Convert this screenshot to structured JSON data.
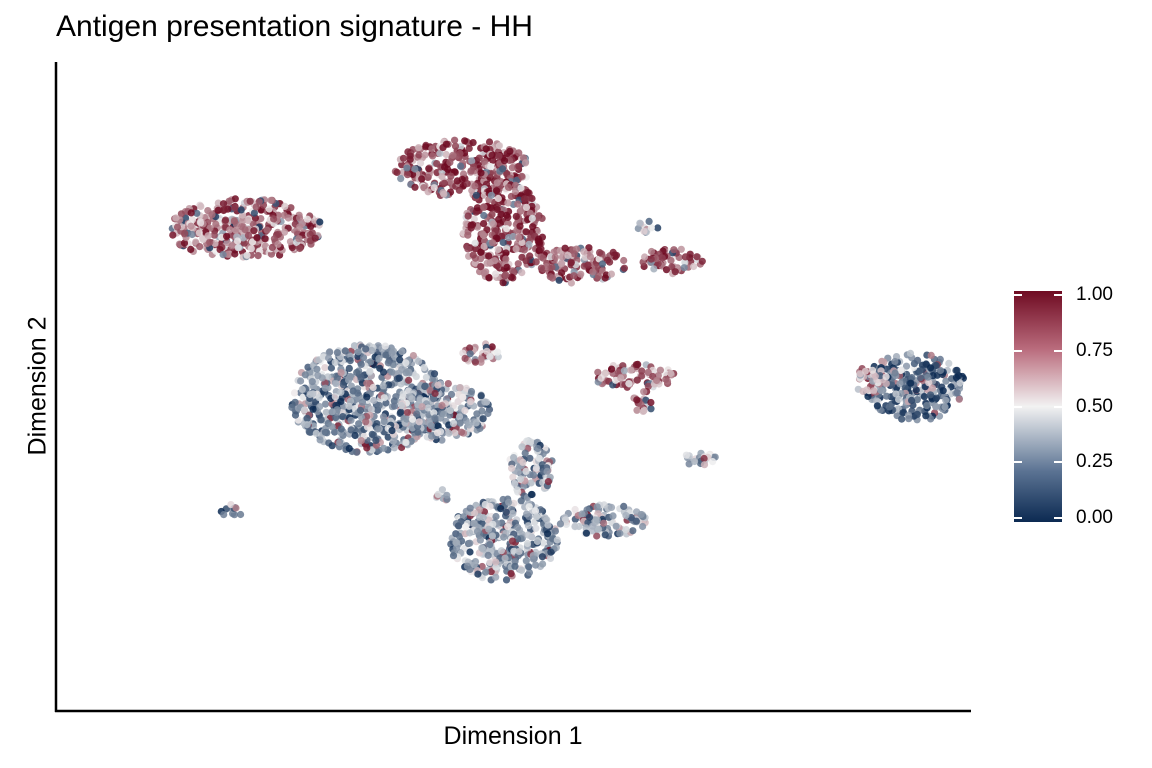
{
  "chart_data": {
    "type": "scatter",
    "title": "Antigen presentation signature - HH",
    "xlabel": "Dimension 1",
    "ylabel": "Dimension 2",
    "xlim": [
      0,
      100
    ],
    "ylim": [
      0,
      100
    ],
    "grid": false,
    "legend_position": "right",
    "color_scale": {
      "range": [
        0,
        1
      ],
      "ticks": [
        "1.00",
        "0.75",
        "0.50",
        "0.25",
        "0.00"
      ],
      "low_color": "#0c2a52",
      "mid_color": "#f2f2f2",
      "high_color": "#6f0b22"
    },
    "clusters": [
      {
        "cx": 20.5,
        "cy": 74.5,
        "rx": 8.5,
        "ry": 4.8,
        "mean_score": 0.8
      },
      {
        "cx": 44.5,
        "cy": 84,
        "rx": 7.5,
        "ry": 4.5,
        "mean_score": 0.9
      },
      {
        "cx": 49,
        "cy": 74,
        "rx": 4.5,
        "ry": 8,
        "mean_score": 0.9
      },
      {
        "cx": 57.5,
        "cy": 69,
        "rx": 5,
        "ry": 3,
        "mean_score": 0.9
      },
      {
        "cx": 67.5,
        "cy": 69.5,
        "rx": 3.5,
        "ry": 2,
        "mean_score": 0.85
      },
      {
        "cx": 65,
        "cy": 75,
        "rx": 1.2,
        "ry": 1,
        "mean_score": 0.4
      },
      {
        "cx": 34,
        "cy": 48,
        "rx": 8.5,
        "ry": 8.5,
        "mean_score": 0.25
      },
      {
        "cx": 42.5,
        "cy": 46,
        "rx": 5,
        "ry": 4.5,
        "mean_score": 0.3
      },
      {
        "cx": 46.5,
        "cy": 55,
        "rx": 2,
        "ry": 1.8,
        "mean_score": 0.7
      },
      {
        "cx": 63.5,
        "cy": 51.5,
        "rx": 4.5,
        "ry": 2,
        "mean_score": 0.8
      },
      {
        "cx": 64.5,
        "cy": 47.5,
        "rx": 1.2,
        "ry": 1.8,
        "mean_score": 0.9
      },
      {
        "cx": 70.5,
        "cy": 38.5,
        "rx": 2,
        "ry": 1.2,
        "mean_score": 0.35
      },
      {
        "cx": 94.5,
        "cy": 50,
        "rx": 5.5,
        "ry": 5.5,
        "mean_score": 0.15
      },
      {
        "cx": 89.5,
        "cy": 51,
        "rx": 2,
        "ry": 2,
        "mean_score": 0.6
      },
      {
        "cx": 49,
        "cy": 26,
        "rx": 6,
        "ry": 6.5,
        "mean_score": 0.3
      },
      {
        "cx": 60,
        "cy": 29,
        "rx": 5,
        "ry": 2.5,
        "mean_score": 0.3
      },
      {
        "cx": 52,
        "cy": 37,
        "rx": 2.5,
        "ry": 4.5,
        "mean_score": 0.35
      },
      {
        "cx": 19,
        "cy": 30.5,
        "rx": 1.2,
        "ry": 1,
        "mean_score": 0.2
      },
      {
        "cx": 42.5,
        "cy": 33,
        "rx": 1,
        "ry": 1,
        "mean_score": 0.4
      }
    ]
  }
}
